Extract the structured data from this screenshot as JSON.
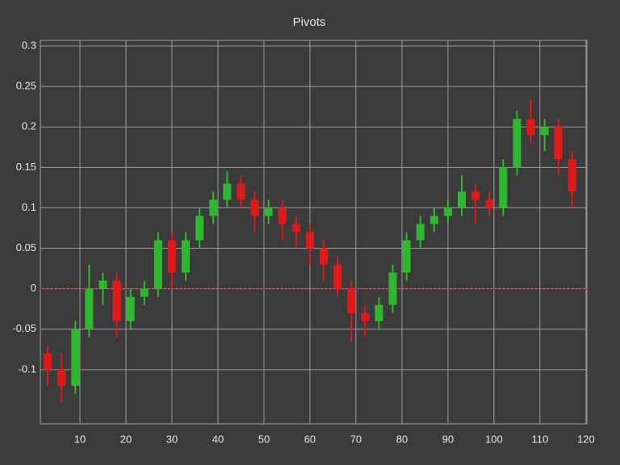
{
  "chart_data": {
    "type": "candlestick",
    "title": "Pivots",
    "x": [
      3,
      6,
      9,
      12,
      15,
      18,
      21,
      24,
      27,
      30,
      33,
      36,
      39,
      42,
      45,
      48,
      51,
      54,
      57,
      60,
      63,
      66,
      69,
      72,
      75,
      78,
      81,
      84,
      87,
      90,
      93,
      96,
      99,
      102,
      105,
      108,
      111,
      114,
      117
    ],
    "open": [
      -0.08,
      -0.1,
      -0.12,
      -0.05,
      0.0,
      0.01,
      -0.04,
      -0.01,
      0.0,
      0.06,
      0.02,
      0.06,
      0.09,
      0.11,
      0.13,
      0.11,
      0.09,
      0.1,
      0.08,
      0.07,
      0.05,
      0.03,
      0.0,
      -0.03,
      -0.04,
      -0.02,
      0.02,
      0.06,
      0.08,
      0.09,
      0.1,
      0.12,
      0.11,
      0.1,
      0.15,
      0.21,
      0.19,
      0.2,
      0.16
    ],
    "high": [
      -0.07,
      -0.08,
      -0.04,
      0.03,
      0.02,
      0.02,
      0.0,
      0.01,
      0.07,
      0.07,
      0.07,
      0.1,
      0.12,
      0.145,
      0.14,
      0.12,
      0.11,
      0.11,
      0.09,
      0.08,
      0.06,
      0.04,
      0.01,
      -0.02,
      -0.01,
      0.03,
      0.07,
      0.09,
      0.1,
      0.11,
      0.14,
      0.13,
      0.12,
      0.16,
      0.22,
      0.235,
      0.21,
      0.21,
      0.17
    ],
    "low": [
      -0.12,
      -0.14,
      -0.13,
      -0.06,
      -0.02,
      -0.06,
      -0.05,
      -0.02,
      -0.01,
      0.0,
      0.01,
      0.05,
      0.08,
      0.1,
      0.1,
      0.07,
      0.08,
      0.06,
      0.05,
      0.03,
      0.01,
      -0.01,
      -0.065,
      -0.06,
      -0.05,
      -0.03,
      0.01,
      0.05,
      0.07,
      0.08,
      0.09,
      0.08,
      0.09,
      0.09,
      0.14,
      0.18,
      0.17,
      0.14,
      0.1
    ],
    "close": [
      -0.1,
      -0.12,
      -0.05,
      0.0,
      0.01,
      -0.04,
      -0.01,
      0.0,
      0.06,
      0.02,
      0.06,
      0.09,
      0.11,
      0.13,
      0.11,
      0.09,
      0.1,
      0.08,
      0.07,
      0.05,
      0.03,
      0.0,
      -0.03,
      -0.04,
      -0.02,
      0.02,
      0.06,
      0.08,
      0.09,
      0.1,
      0.12,
      0.11,
      0.1,
      0.15,
      0.21,
      0.19,
      0.2,
      0.16,
      0.12
    ],
    "up_color": "#2fb82f",
    "down_color": "#e01a1a",
    "reference_line": 0,
    "reference_color": "#c0282a",
    "xlim": [
      1.4,
      120.2
    ],
    "xticks": [
      10,
      20,
      30,
      40,
      50,
      60,
      70,
      80,
      90,
      100,
      110,
      120
    ],
    "ylim": [
      -0.167,
      0.307
    ],
    "yticks": [
      0.3,
      0.25,
      0.2,
      0.15,
      0.1,
      0.05,
      0,
      -0.05,
      -0.1
    ],
    "grid": true
  }
}
